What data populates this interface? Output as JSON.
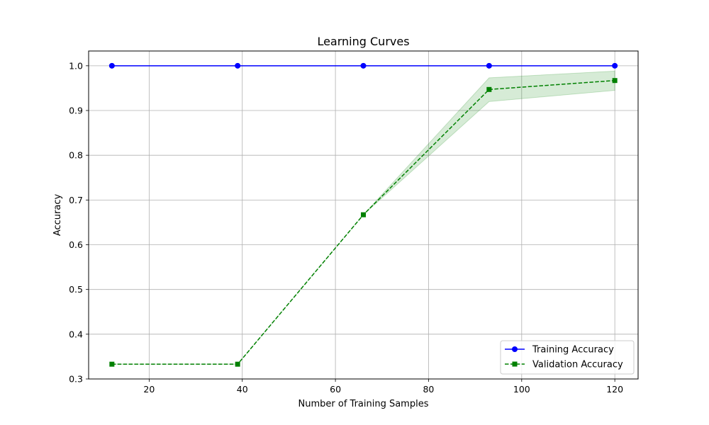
{
  "chart_data": {
    "type": "line",
    "title": "Learning Curves",
    "xlabel": "Number of Training Samples",
    "ylabel": "Accuracy",
    "xlim": [
      7,
      125
    ],
    "ylim": [
      0.3,
      1.033
    ],
    "xticks": [
      20,
      40,
      60,
      80,
      100,
      120
    ],
    "yticks": [
      0.3,
      0.4,
      0.5,
      0.6,
      0.7,
      0.8,
      0.9,
      1.0
    ],
    "xtick_labels": [
      "20",
      "40",
      "60",
      "80",
      "100",
      "120"
    ],
    "ytick_labels": [
      "0.3",
      "0.4",
      "0.5",
      "0.6",
      "0.7",
      "0.8",
      "0.9",
      "1.0"
    ],
    "grid": true,
    "legend_position": "bottom-right",
    "x": [
      12,
      39,
      66,
      93,
      120
    ],
    "series": [
      {
        "name": "Training Accuracy",
        "values": [
          1.0,
          1.0,
          1.0,
          1.0,
          1.0
        ],
        "color": "#0000ff",
        "marker": "circle",
        "linestyle": "solid"
      },
      {
        "name": "Validation Accuracy",
        "values": [
          0.333,
          0.333,
          0.667,
          0.947,
          0.967
        ],
        "lower": [
          0.333,
          0.333,
          0.667,
          0.92,
          0.945
        ],
        "upper": [
          0.333,
          0.333,
          0.667,
          0.973,
          0.988
        ],
        "color": "#008000",
        "band_color": "#008000",
        "marker": "square",
        "linestyle": "dashed"
      }
    ]
  }
}
